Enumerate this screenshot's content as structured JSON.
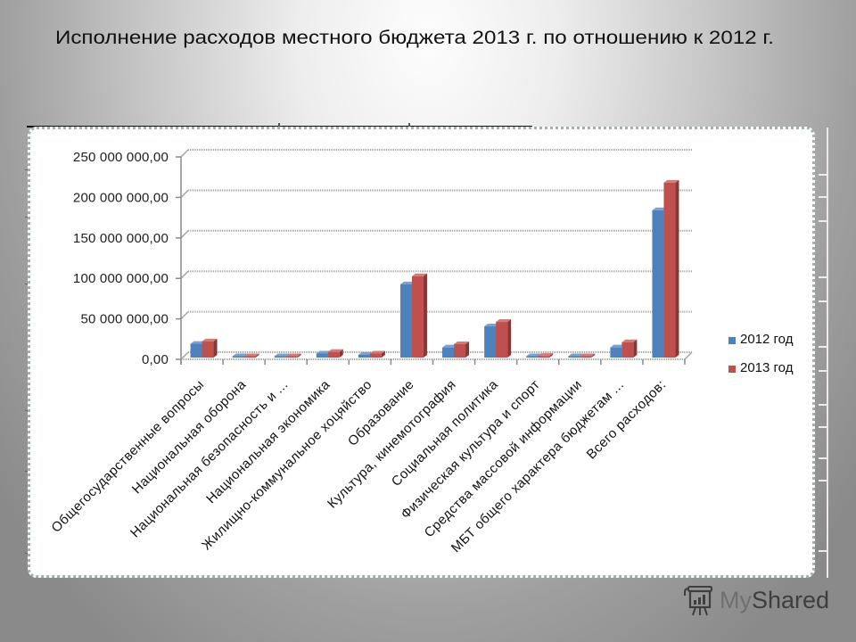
{
  "slide": {
    "title": "Исполнение расходов местного бюджета 2013 г. по отношению к 2012 г."
  },
  "chart_data": {
    "type": "bar",
    "style": "3d-clustered-column",
    "title": "",
    "xlabel": "",
    "ylabel": "",
    "ylim": [
      0,
      250000000
    ],
    "grid": true,
    "legend_position": "right",
    "y_ticks": [
      0,
      50000000,
      100000000,
      150000000,
      200000000,
      250000000
    ],
    "y_tick_labels": [
      "0,00",
      "50 000 000,00",
      "100 000 000,00",
      "150 000 000,00",
      "200 000 000,00",
      "250 000 000,00"
    ],
    "categories": [
      "Общегосударственные вопросы",
      "Национальная оборона",
      "Национальная безопасность и ...",
      "Национальная экономика",
      "Жилищно-коммунальное хоцяйство",
      "Образование",
      "Культура, кинемотография",
      "Социальная политика",
      "Физическая культура и спорт",
      "Средства массовой информации",
      "МБТ общего характера бюджетам ...",
      "Всего расходов:"
    ],
    "series": [
      {
        "name": "2012 год",
        "color": "#4F81BD",
        "values": [
          17000000,
          500000,
          800000,
          5000000,
          3500000,
          90500000,
          12500000,
          38500000,
          1000000,
          900000,
          12500000,
          182000000
        ]
      },
      {
        "name": "2013 год",
        "color": "#C0504D",
        "values": [
          20000000,
          600000,
          1000000,
          7000000,
          5000000,
          100500000,
          16500000,
          44000000,
          2000000,
          1200000,
          19000000,
          216000000
        ]
      }
    ]
  },
  "legend": {
    "items": [
      {
        "label": "2012 год",
        "color": "#4F81BD"
      },
      {
        "label": "2013 год",
        "color": "#C0504D"
      }
    ]
  },
  "watermark": {
    "icon": "presentation-board-icon",
    "brand_prefix": "My",
    "brand_suffix": "Shared"
  }
}
